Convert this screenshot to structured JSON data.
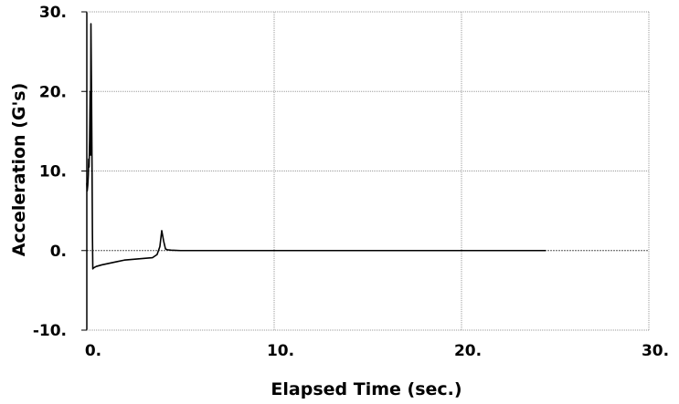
{
  "chart_data": {
    "type": "line",
    "title": "",
    "xlabel": "Elapsed Time (sec.)",
    "ylabel": "Acceleration (G's)",
    "xlim": [
      0,
      30
    ],
    "ylim": [
      -10,
      30
    ],
    "x_ticks": [
      "0.",
      "10.",
      "20.",
      "30."
    ],
    "y_ticks": [
      "-10.",
      "0.",
      "10.",
      "20.",
      "30."
    ],
    "grid": true,
    "series": [
      {
        "color": "#000000",
        "x": [
          0,
          0.02,
          0.05,
          0.08,
          0.1,
          0.12,
          0.15,
          0.18,
          0.2,
          0.22,
          0.25,
          0.28,
          0.3,
          0.32,
          0.35,
          0.5,
          0.8,
          1.2,
          1.6,
          2.0,
          2.5,
          3.0,
          3.5,
          3.75,
          3.9,
          4.0,
          4.1,
          4.2,
          4.3,
          4.5,
          5.0,
          7,
          10,
          15,
          20,
          24.5
        ],
        "y": [
          8.5,
          7.5,
          8.2,
          9.5,
          11.5,
          10.5,
          14,
          20,
          12,
          28.5,
          20,
          10,
          2,
          -2.3,
          -2.2,
          -2.0,
          -1.8,
          -1.6,
          -1.4,
          -1.2,
          -1.1,
          -1.0,
          -0.9,
          -0.5,
          0.5,
          2.5,
          1.2,
          0.2,
          0.1,
          0.05,
          0,
          0,
          0,
          0,
          0,
          0
        ]
      }
    ]
  }
}
